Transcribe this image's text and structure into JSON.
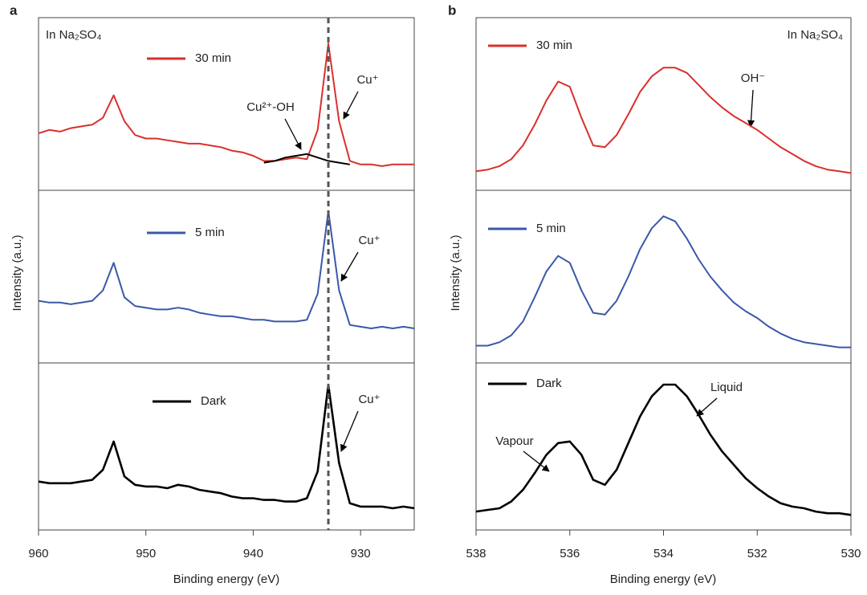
{
  "chart_data": [
    {
      "type": "line",
      "panel_label": "a",
      "xlabel": "Binding energy (eV)",
      "ylabel": "Intensity (a.u.)",
      "note": "In Na₂SO₄",
      "xlim": [
        960,
        925
      ],
      "xticks": [
        960,
        950,
        940,
        930
      ],
      "ylim": [
        0,
        1
      ],
      "reference_x": 933,
      "x": [
        960,
        959,
        958,
        957,
        956,
        955,
        954,
        953,
        952,
        951,
        950,
        949,
        948,
        947,
        946,
        945,
        944,
        943,
        942,
        941,
        940,
        939,
        938,
        937,
        936,
        935,
        934,
        933,
        932,
        931,
        930,
        929,
        928,
        927,
        926,
        925
      ],
      "annotations": [
        "Cu²⁺-OH",
        "Cu⁺",
        "Cu⁺",
        "Cu⁺"
      ],
      "panels": [
        {
          "series": [
            {
              "name": "30 min",
              "color": "#d9302c",
              "values": [
                0.33,
                0.35,
                0.34,
                0.36,
                0.37,
                0.38,
                0.42,
                0.55,
                0.4,
                0.32,
                0.3,
                0.3,
                0.29,
                0.28,
                0.27,
                0.27,
                0.26,
                0.25,
                0.23,
                0.22,
                0.2,
                0.17,
                0.17,
                0.18,
                0.19,
                0.18,
                0.35,
                0.85,
                0.4,
                0.17,
                0.15,
                0.15,
                0.14,
                0.15,
                0.15,
                0.15
              ]
            }
          ],
          "fit": {
            "color": "#000000",
            "values": [
              null,
              null,
              null,
              null,
              null,
              null,
              null,
              null,
              null,
              null,
              null,
              null,
              null,
              null,
              null,
              null,
              null,
              null,
              null,
              null,
              null,
              0.16,
              0.17,
              0.19,
              0.2,
              0.21,
              0.19,
              0.17,
              0.16,
              0.15,
              null,
              null,
              null,
              null,
              null,
              null
            ]
          }
        },
        {
          "series": [
            {
              "name": "5 min",
              "color": "#3b58a8",
              "values": [
                0.36,
                0.35,
                0.35,
                0.34,
                0.35,
                0.36,
                0.42,
                0.58,
                0.38,
                0.33,
                0.32,
                0.31,
                0.31,
                0.32,
                0.31,
                0.29,
                0.28,
                0.27,
                0.27,
                0.26,
                0.25,
                0.25,
                0.24,
                0.24,
                0.24,
                0.25,
                0.4,
                0.88,
                0.42,
                0.22,
                0.21,
                0.2,
                0.21,
                0.2,
                0.21,
                0.2
              ]
            }
          ]
        },
        {
          "series": [
            {
              "name": "Dark",
              "color": "#000000",
              "values": [
                0.29,
                0.28,
                0.28,
                0.28,
                0.29,
                0.3,
                0.36,
                0.53,
                0.32,
                0.27,
                0.26,
                0.26,
                0.25,
                0.27,
                0.26,
                0.24,
                0.23,
                0.22,
                0.2,
                0.19,
                0.19,
                0.18,
                0.18,
                0.17,
                0.17,
                0.19,
                0.35,
                0.87,
                0.4,
                0.16,
                0.14,
                0.14,
                0.14,
                0.13,
                0.14,
                0.13
              ]
            }
          ]
        }
      ]
    },
    {
      "type": "line",
      "panel_label": "b",
      "xlabel": "Binding energy (eV)",
      "ylabel": "Intensity (a.u.)",
      "note": "In Na₂SO₄",
      "xlim": [
        538,
        530
      ],
      "xticks": [
        538,
        536,
        534,
        532,
        530
      ],
      "ylim": [
        0,
        1
      ],
      "x": [
        538,
        537.75,
        537.5,
        537.25,
        537,
        536.75,
        536.5,
        536.25,
        536,
        535.75,
        535.5,
        535.25,
        535,
        534.75,
        534.5,
        534.25,
        534,
        533.75,
        533.5,
        533.25,
        533,
        532.75,
        532.5,
        532.25,
        532,
        531.75,
        531.5,
        531.25,
        531,
        530.75,
        530.5,
        530.25,
        530
      ],
      "annotations": [
        "OH⁻",
        "Vapour",
        "Liquid"
      ],
      "panels": [
        {
          "series": [
            {
              "name": "30 min",
              "color": "#d9302c",
              "values": [
                0.11,
                0.12,
                0.14,
                0.18,
                0.26,
                0.38,
                0.52,
                0.63,
                0.6,
                0.42,
                0.26,
                0.25,
                0.32,
                0.44,
                0.57,
                0.66,
                0.71,
                0.71,
                0.68,
                0.61,
                0.54,
                0.48,
                0.43,
                0.39,
                0.35,
                0.3,
                0.25,
                0.21,
                0.17,
                0.14,
                0.12,
                0.11,
                0.1
              ]
            }
          ]
        },
        {
          "series": [
            {
              "name": "5 min",
              "color": "#3b58a8",
              "values": [
                0.1,
                0.1,
                0.12,
                0.16,
                0.24,
                0.38,
                0.53,
                0.62,
                0.58,
                0.42,
                0.29,
                0.28,
                0.36,
                0.5,
                0.66,
                0.78,
                0.85,
                0.82,
                0.72,
                0.6,
                0.5,
                0.42,
                0.35,
                0.3,
                0.26,
                0.21,
                0.17,
                0.14,
                0.12,
                0.11,
                0.1,
                0.09,
                0.09
              ]
            }
          ]
        },
        {
          "series": [
            {
              "name": "Dark",
              "color": "#000000",
              "values": [
                0.11,
                0.12,
                0.13,
                0.17,
                0.24,
                0.34,
                0.45,
                0.52,
                0.53,
                0.45,
                0.3,
                0.27,
                0.36,
                0.52,
                0.68,
                0.8,
                0.87,
                0.87,
                0.8,
                0.69,
                0.57,
                0.47,
                0.39,
                0.31,
                0.25,
                0.2,
                0.16,
                0.14,
                0.13,
                0.11,
                0.1,
                0.1,
                0.09
              ]
            }
          ]
        }
      ]
    }
  ]
}
